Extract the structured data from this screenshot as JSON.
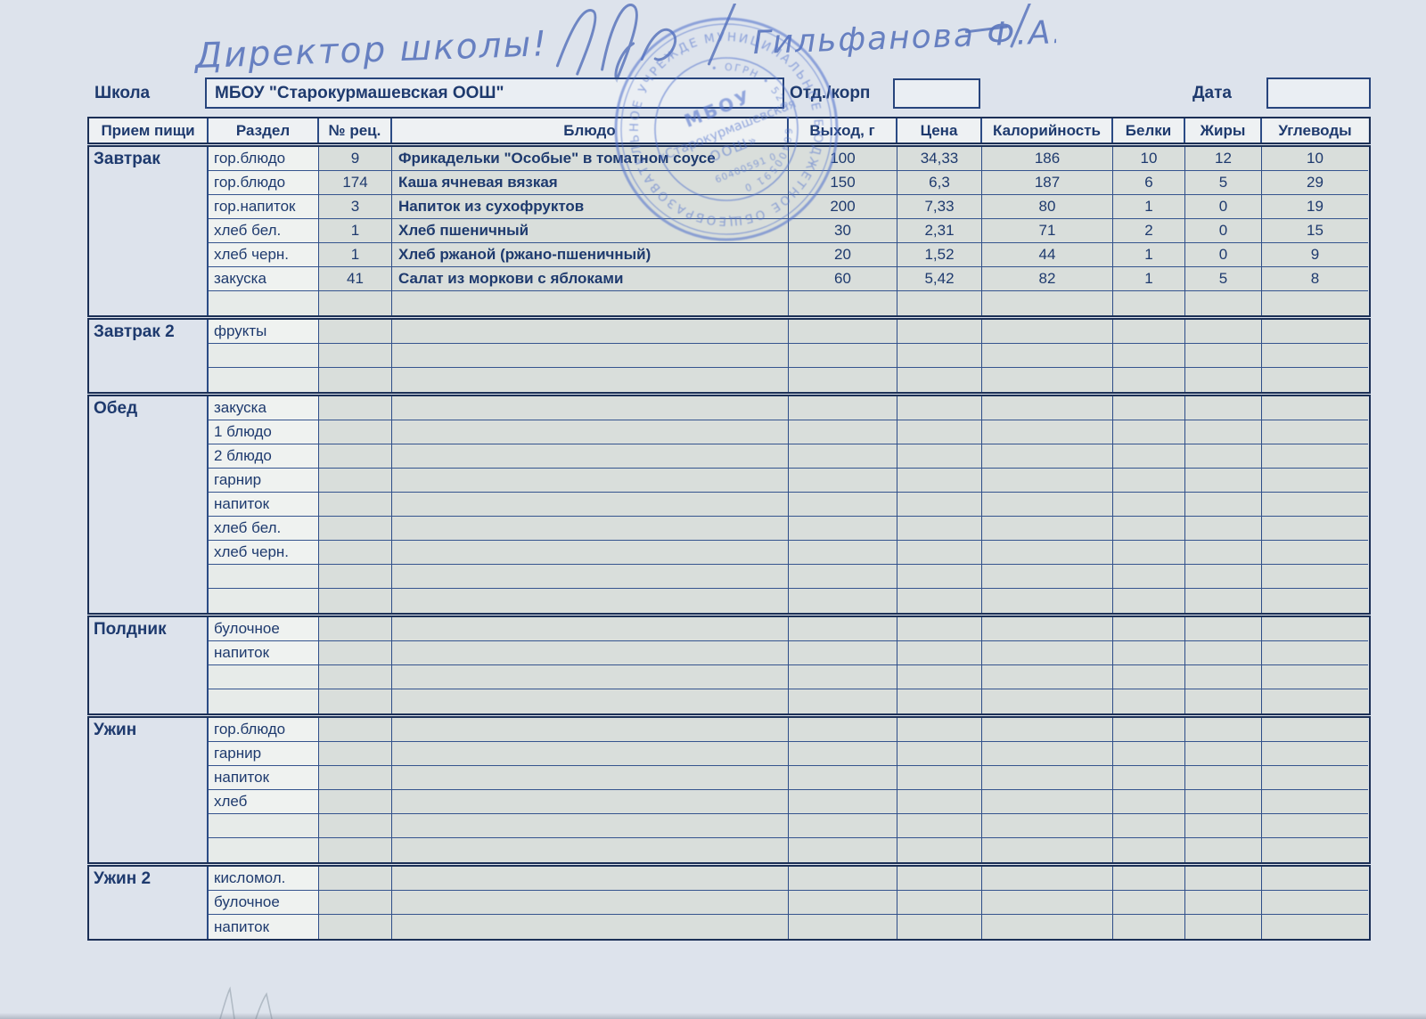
{
  "colors": {
    "border_navy": "#1c3056",
    "text_navy": "#1e3a6e",
    "ink_blue": "#5b76bd",
    "stamp_blue": "#5272cc",
    "cell_fill": "#d9dedb"
  },
  "handwriting": {
    "annotation": "Директор школы!",
    "signature_name": "Гильфанова Ф.А."
  },
  "form": {
    "school_label": "Школа",
    "school_value": "МБОУ \"Старокурмашевская ООШ\"",
    "dept_label": "Отд./корп",
    "dept_value": "",
    "date_label": "Дата",
    "date_value": ""
  },
  "stamp": {
    "ring_outer": "МУНИЦИПАЛЬНОЕ БЮДЖЕТНОЕ ОБЩЕОБРАЗОВАТЕЛЬНОЕ УЧРЕЖДЕНИЕ • ",
    "ring_inner": "• ОГРН • 520 • 60400591 0 ",
    "center_abbr": "МБОУ",
    "center_name1": "«Старокурмашевская",
    "center_name2": "ООШ»",
    "number": "60400591 0"
  },
  "table": {
    "headers": [
      "Прием пищи",
      "Раздел",
      "№ рец.",
      "Блюдо",
      "Выход, г",
      "Цена",
      "Калорийность",
      "Белки",
      "Жиры",
      "Углеводы"
    ],
    "sections": [
      {
        "meal": "Завтрак",
        "rows": [
          {
            "razdel": "гор.блюдо",
            "rec": "9",
            "dish": "Фрикадельки \"Особые\" в томатном соусе",
            "out": "100",
            "price": "34,33",
            "kcal": "186",
            "protein": "10",
            "fat": "12",
            "carbs": "10"
          },
          {
            "razdel": "гор.блюдо",
            "rec": "174",
            "dish": "Каша ячневая вязкая",
            "out": "150",
            "price": "6,3",
            "kcal": "187",
            "protein": "6",
            "fat": "5",
            "carbs": "29"
          },
          {
            "razdel": "гор.напиток",
            "rec": "3",
            "dish": "Напиток из  сухофруктов",
            "out": "200",
            "price": "7,33",
            "kcal": "80",
            "protein": "1",
            "fat": "0",
            "carbs": "19"
          },
          {
            "razdel": "хлеб бел.",
            "rec": "1",
            "dish": "Хлеб пшеничный",
            "out": "30",
            "price": "2,31",
            "kcal": "71",
            "protein": "2",
            "fat": "0",
            "carbs": "15"
          },
          {
            "razdel": "хлеб черн.",
            "rec": "1",
            "dish": "Хлеб ржаной (ржано-пшеничный)",
            "out": "20",
            "price": "1,52",
            "kcal": "44",
            "protein": "1",
            "fat": "0",
            "carbs": "9"
          },
          {
            "razdel": "закуска",
            "rec": "41",
            "dish": "Салат из моркови с яблоками",
            "out": "60",
            "price": "5,42",
            "kcal": "82",
            "protein": "1",
            "fat": "5",
            "carbs": "8"
          },
          {}
        ]
      },
      {
        "meal": "Завтрак 2",
        "rows": [
          {
            "razdel": "фрукты"
          },
          {},
          {}
        ]
      },
      {
        "meal": "Обед",
        "rows": [
          {
            "razdel": "закуска"
          },
          {
            "razdel": "1 блюдо"
          },
          {
            "razdel": "2 блюдо"
          },
          {
            "razdel": "гарнир"
          },
          {
            "razdel": "напиток"
          },
          {
            "razdel": "хлеб бел."
          },
          {
            "razdel": "хлеб черн."
          },
          {},
          {}
        ]
      },
      {
        "meal": "Полдник",
        "rows": [
          {
            "razdel": "булочное"
          },
          {
            "razdel": "напиток"
          },
          {},
          {}
        ]
      },
      {
        "meal": "Ужин",
        "rows": [
          {
            "razdel": "гор.блюдо"
          },
          {
            "razdel": "гарнир"
          },
          {
            "razdel": "напиток"
          },
          {
            "razdel": "хлеб"
          },
          {},
          {}
        ]
      },
      {
        "meal": "Ужин 2",
        "rows": [
          {
            "razdel": "кисломол."
          },
          {
            "razdel": "булочное"
          },
          {
            "razdel": "напиток"
          }
        ]
      }
    ]
  }
}
